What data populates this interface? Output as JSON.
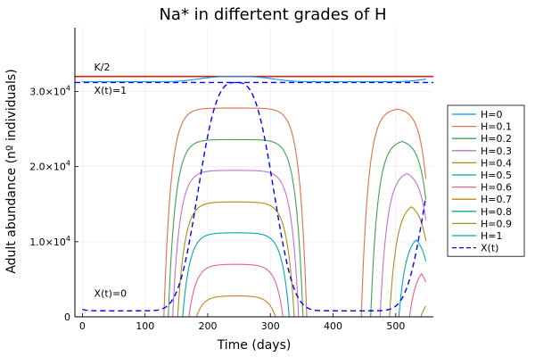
{
  "chart_data": {
    "type": "line",
    "title": "Na* in differtent grades of H",
    "xlabel": "Time (days)",
    "ylabel": "Adult abundance (nº individuals)",
    "xlim": [
      -12,
      560
    ],
    "ylim": [
      0,
      38500
    ],
    "x_ticks": [
      0,
      100,
      200,
      300,
      400,
      500
    ],
    "y_ticks": [
      {
        "value": 0,
        "label": "0"
      },
      {
        "value": 10000,
        "label": "1.0×10",
        "exp": "4"
      },
      {
        "value": 20000,
        "label": "2.0×10",
        "exp": "4"
      },
      {
        "value": 30000,
        "label": "3.0×10",
        "exp": "4"
      }
    ],
    "grid": true,
    "legend_position": "right",
    "annotations": [
      {
        "text": "K/2",
        "x": 40,
        "y": 32800,
        "color": "#e0201b"
      },
      {
        "text": "X(t)=1",
        "x": 40,
        "y": 29700,
        "color": "#0000ff"
      },
      {
        "text": "X(t)=0",
        "x": 40,
        "y": 2700,
        "color": "#0000ff"
      }
    ],
    "reference_lines": [
      {
        "name": "K/2",
        "y": 32000,
        "color": "#e0201b"
      },
      {
        "name": "X(t)=1",
        "y": 31200,
        "color": "#0000ff",
        "dash": true
      }
    ],
    "series": [
      {
        "name": "H=0",
        "color": "#009af9",
        "plateau": 32000,
        "start1": 0,
        "end1": 560,
        "start2": 0,
        "end2": 0,
        "dip": true
      },
      {
        "name": "H=0.1",
        "color": "#e26f46",
        "plateau": 27800,
        "start1": 130,
        "end1": 358,
        "start2": 445,
        "end2": 560
      },
      {
        "name": "H=0.2",
        "color": "#3da44d",
        "plateau": 23600,
        "start1": 137,
        "end1": 352,
        "start2": 460,
        "end2": 560
      },
      {
        "name": "H=0.3",
        "color": "#c271d2",
        "plateau": 19500,
        "start1": 144,
        "end1": 345,
        "start2": 475,
        "end2": 560
      },
      {
        "name": "H=0.4",
        "color": "#ac8d18",
        "plateau": 15300,
        "start1": 152,
        "end1": 338,
        "start2": 490,
        "end2": 560
      },
      {
        "name": "H=0.5",
        "color": "#00a9ad",
        "plateau": 11200,
        "start1": 160,
        "end1": 330,
        "start2": 505,
        "end2": 560
      },
      {
        "name": "H=0.6",
        "color": "#ed5e93",
        "plateau": 7000,
        "start1": 170,
        "end1": 320,
        "start2": 522,
        "end2": 560
      },
      {
        "name": "H=0.7",
        "color": "#c68125",
        "plateau": 2800,
        "start1": 182,
        "end1": 308,
        "start2": 540,
        "end2": 560
      },
      {
        "name": "H=0.8",
        "color": "#00a98d",
        "plateau": 0,
        "start1": 0,
        "end1": 0,
        "start2": 0,
        "end2": 0
      },
      {
        "name": "H=0.9",
        "color": "#8e971e",
        "plateau": 0,
        "start1": 0,
        "end1": 0,
        "start2": 0,
        "end2": 0
      },
      {
        "name": "H=1",
        "color": "#00a8cb",
        "plateau": 0,
        "start1": 0,
        "end1": 0,
        "start2": 0,
        "end2": 0
      },
      {
        "name": "X(t)",
        "color": "#0000ff",
        "dash": true,
        "type": "sinusoid_scaled"
      }
    ]
  }
}
